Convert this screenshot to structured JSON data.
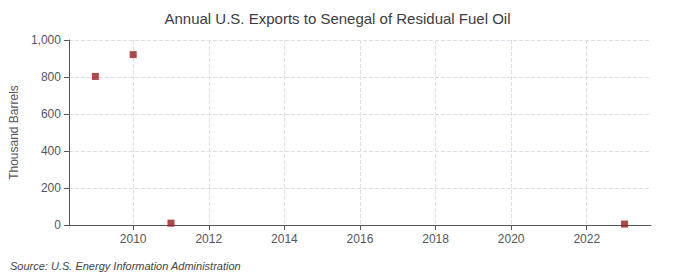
{
  "chart_data": {
    "type": "scatter",
    "title": "Annual U.S. Exports to Senegal of Residual Fuel Oil",
    "ylabel": "Thousand Barrels",
    "annotations": [
      "Source: U.S. Energy Information Administration"
    ],
    "x": [
      2009,
      2010,
      2011,
      2023
    ],
    "values": [
      803,
      921,
      10,
      5
    ],
    "color": "#9b1c1c",
    "marker": "square",
    "xlim": [
      2008.3,
      2023.7
    ],
    "xticks": [
      2010,
      2012,
      2014,
      2016,
      2018,
      2020,
      2022
    ],
    "ylim": [
      0,
      1000
    ],
    "yticks": [
      0,
      200,
      400,
      600,
      800,
      {
        "value": 1000,
        "label": "1,000"
      }
    ],
    "grid": true
  }
}
